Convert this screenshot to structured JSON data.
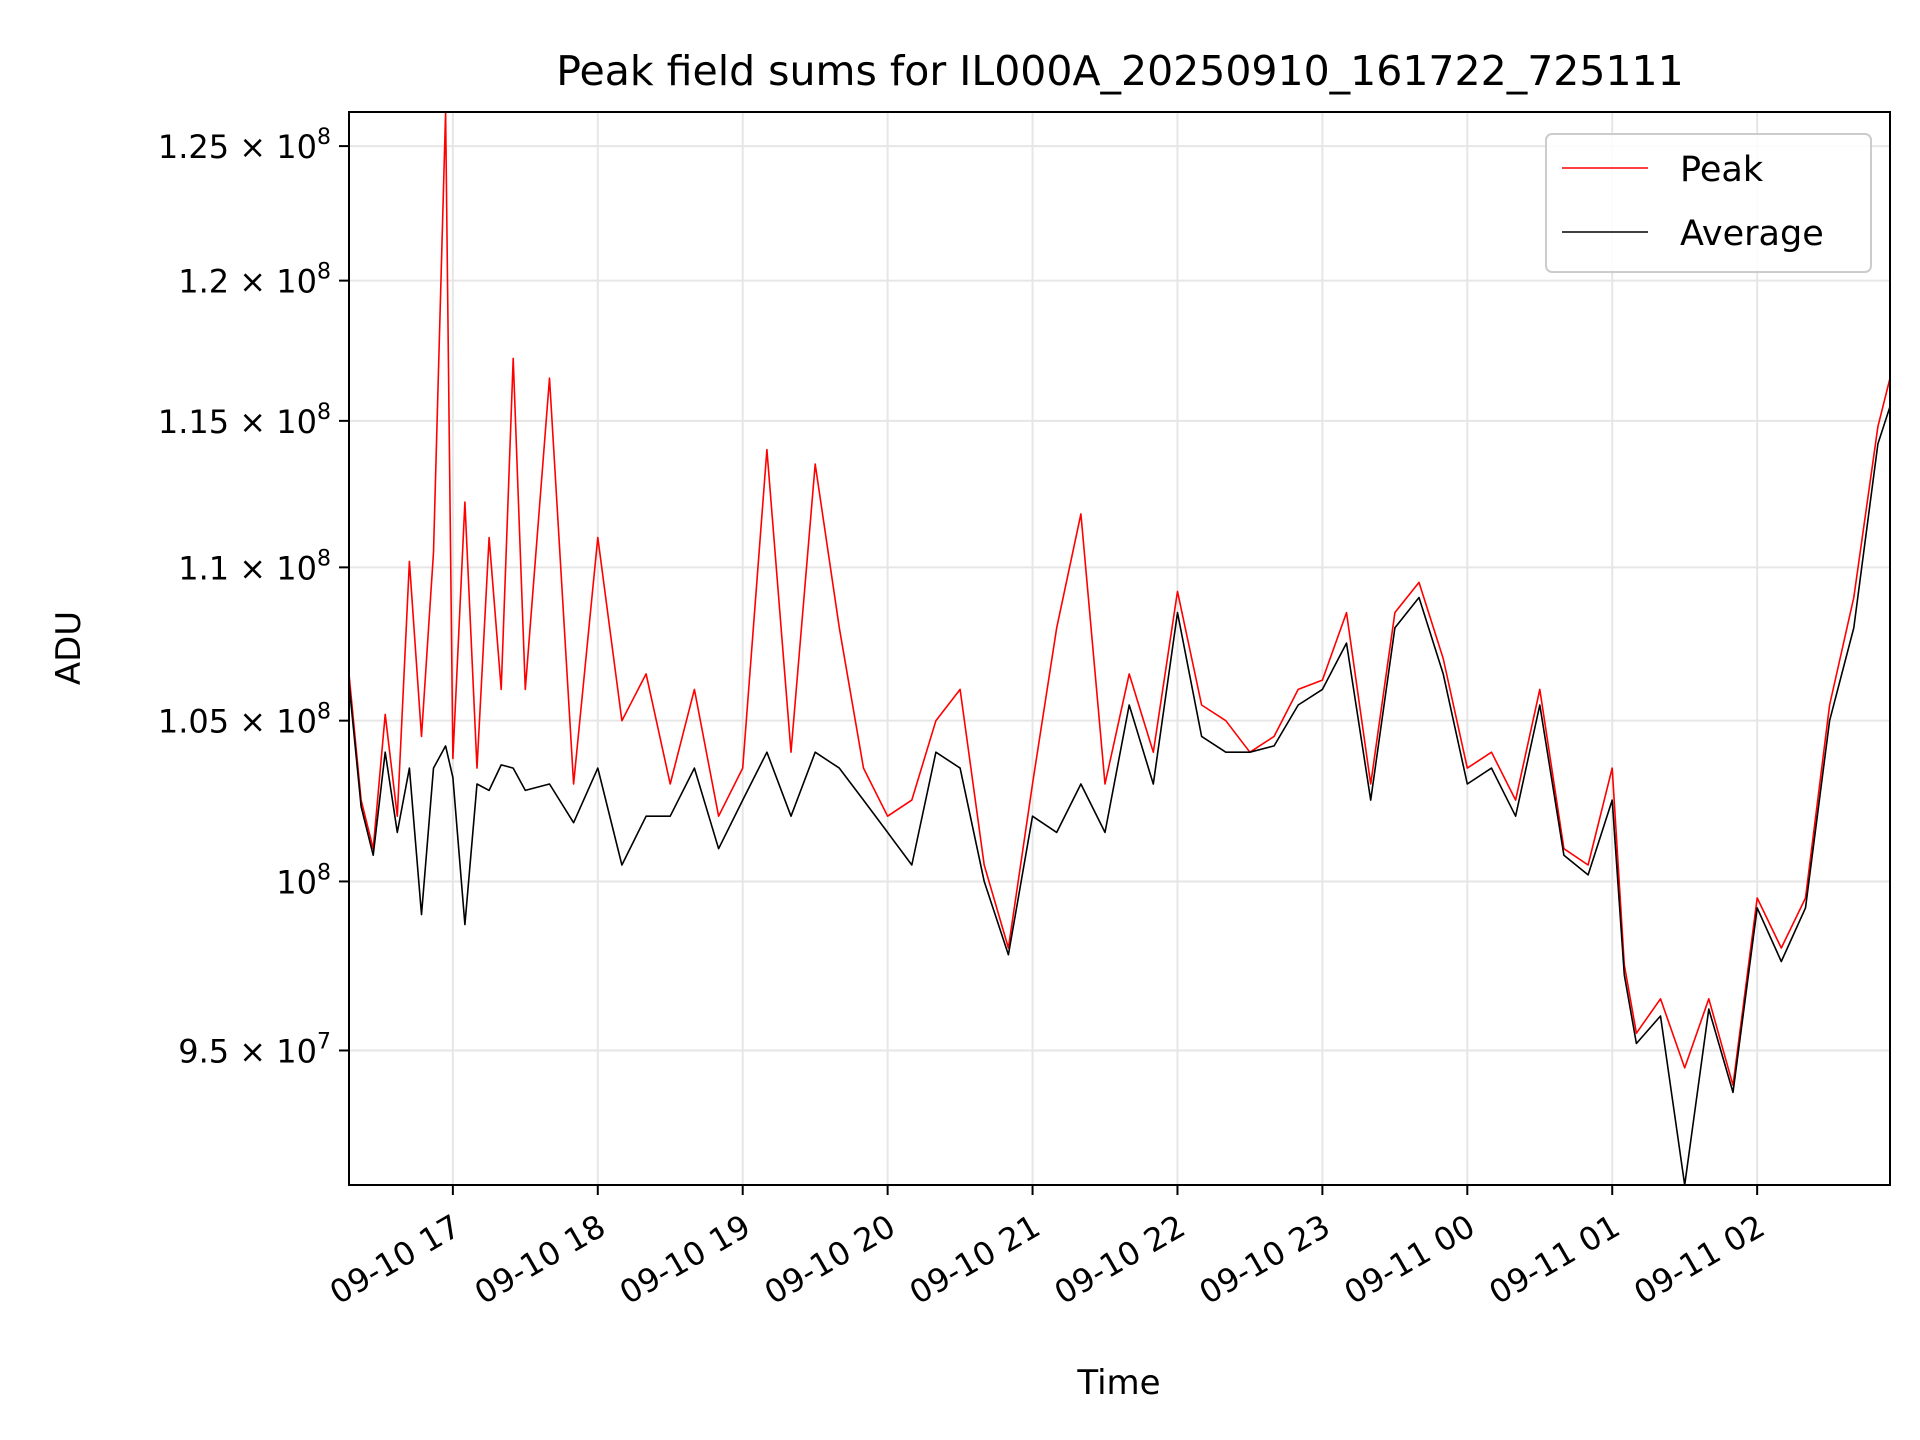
{
  "chart_data": {
    "type": "line",
    "title": "Peak field sums for IL000A_20250910_161722_725111",
    "xlabel": "Time",
    "ylabel": "ADU",
    "xlim": [
      "2025-09-10 16:17",
      "2025-09-11 02:55"
    ],
    "ylim": [
      91200000,
      126300000
    ],
    "yscale": "log",
    "grid": true,
    "legend_position": "top-right",
    "x_ticks": [
      {
        "t": "2025-09-10 17:00",
        "label": "09-10 17"
      },
      {
        "t": "2025-09-10 18:00",
        "label": "09-10 18"
      },
      {
        "t": "2025-09-10 19:00",
        "label": "09-10 19"
      },
      {
        "t": "2025-09-10 20:00",
        "label": "09-10 20"
      },
      {
        "t": "2025-09-10 21:00",
        "label": "09-10 21"
      },
      {
        "t": "2025-09-10 22:00",
        "label": "09-10 22"
      },
      {
        "t": "2025-09-10 23:00",
        "label": "09-10 23"
      },
      {
        "t": "2025-09-11 00:00",
        "label": "09-11 00"
      },
      {
        "t": "2025-09-11 01:00",
        "label": "09-11 01"
      },
      {
        "t": "2025-09-11 02:00",
        "label": "09-11 02"
      }
    ],
    "y_ticks": [
      {
        "value": 95000000,
        "mantissa": "9.5",
        "exp": "7"
      },
      {
        "value": 100000000,
        "mantissa": "",
        "exp": "8"
      },
      {
        "value": 105000000,
        "mantissa": "1.05",
        "exp": "8"
      },
      {
        "value": 110000000,
        "mantissa": "1.1",
        "exp": "8"
      },
      {
        "value": 115000000,
        "mantissa": "1.15",
        "exp": "8"
      },
      {
        "value": 120000000,
        "mantissa": "1.2",
        "exp": "8"
      },
      {
        "value": 125000000,
        "mantissa": "1.25",
        "exp": "8"
      }
    ],
    "series": [
      {
        "name": "Peak",
        "color": "#ff0000",
        "x": [
          "2025-09-10 16:17",
          "2025-09-10 16:22",
          "2025-09-10 16:27",
          "2025-09-10 16:32",
          "2025-09-10 16:37",
          "2025-09-10 16:42",
          "2025-09-10 16:47",
          "2025-09-10 16:52",
          "2025-09-10 16:57",
          "2025-09-10 17:00",
          "2025-09-10 17:05",
          "2025-09-10 17:10",
          "2025-09-10 17:15",
          "2025-09-10 17:20",
          "2025-09-10 17:25",
          "2025-09-10 17:30",
          "2025-09-10 17:40",
          "2025-09-10 17:50",
          "2025-09-10 18:00",
          "2025-09-10 18:10",
          "2025-09-10 18:20",
          "2025-09-10 18:30",
          "2025-09-10 18:40",
          "2025-09-10 18:50",
          "2025-09-10 19:00",
          "2025-09-10 19:10",
          "2025-09-10 19:20",
          "2025-09-10 19:30",
          "2025-09-10 19:40",
          "2025-09-10 19:50",
          "2025-09-10 20:00",
          "2025-09-10 20:10",
          "2025-09-10 20:20",
          "2025-09-10 20:30",
          "2025-09-10 20:40",
          "2025-09-10 20:50",
          "2025-09-10 21:00",
          "2025-09-10 21:10",
          "2025-09-10 21:20",
          "2025-09-10 21:30",
          "2025-09-10 21:40",
          "2025-09-10 21:50",
          "2025-09-10 22:00",
          "2025-09-10 22:10",
          "2025-09-10 22:20",
          "2025-09-10 22:30",
          "2025-09-10 22:40",
          "2025-09-10 22:50",
          "2025-09-10 23:00",
          "2025-09-10 23:10",
          "2025-09-10 23:20",
          "2025-09-10 23:30",
          "2025-09-10 23:40",
          "2025-09-10 23:50",
          "2025-09-11 00:00",
          "2025-09-11 00:10",
          "2025-09-11 00:20",
          "2025-09-11 00:30",
          "2025-09-11 00:40",
          "2025-09-11 00:50",
          "2025-09-11 01:00",
          "2025-09-11 01:05",
          "2025-09-11 01:10",
          "2025-09-11 01:20",
          "2025-09-11 01:30",
          "2025-09-11 01:40",
          "2025-09-11 01:50",
          "2025-09-11 02:00",
          "2025-09-11 02:10",
          "2025-09-11 02:20",
          "2025-09-11 02:30",
          "2025-09-11 02:40",
          "2025-09-11 02:50",
          "2025-09-11 02:55"
        ],
        "values": [
          106500000,
          102500000,
          101000000,
          105200000,
          102000000,
          110200000,
          104500000,
          110500000,
          126300000,
          103800000,
          112200000,
          103500000,
          111000000,
          106000000,
          117200000,
          106000000,
          116500000,
          103000000,
          111000000,
          105000000,
          106500000,
          103000000,
          106000000,
          102000000,
          103500000,
          114000000,
          104000000,
          113500000,
          108000000,
          103500000,
          102000000,
          102500000,
          105000000,
          106000000,
          100500000,
          98000000,
          103000000,
          108000000,
          111800000,
          103000000,
          106500000,
          104000000,
          109200000,
          105500000,
          105000000,
          104000000,
          104500000,
          106000000,
          106300000,
          108500000,
          103000000,
          108500000,
          109500000,
          107000000,
          103500000,
          104000000,
          102500000,
          106000000,
          101000000,
          100500000,
          103500000,
          97500000,
          95500000,
          96500000,
          94500000,
          96500000,
          94000000,
          99500000,
          98000000,
          99500000,
          105500000,
          109000000,
          114800000,
          116500000
        ]
      },
      {
        "name": "Average",
        "color": "#000000",
        "x": [
          "2025-09-10 16:17",
          "2025-09-10 16:22",
          "2025-09-10 16:27",
          "2025-09-10 16:32",
          "2025-09-10 16:37",
          "2025-09-10 16:42",
          "2025-09-10 16:47",
          "2025-09-10 16:52",
          "2025-09-10 16:57",
          "2025-09-10 17:00",
          "2025-09-10 17:05",
          "2025-09-10 17:10",
          "2025-09-10 17:15",
          "2025-09-10 17:20",
          "2025-09-10 17:25",
          "2025-09-10 17:30",
          "2025-09-10 17:40",
          "2025-09-10 17:50",
          "2025-09-10 18:00",
          "2025-09-10 18:10",
          "2025-09-10 18:20",
          "2025-09-10 18:30",
          "2025-09-10 18:40",
          "2025-09-10 18:50",
          "2025-09-10 19:00",
          "2025-09-10 19:10",
          "2025-09-10 19:20",
          "2025-09-10 19:30",
          "2025-09-10 19:40",
          "2025-09-10 19:50",
          "2025-09-10 20:00",
          "2025-09-10 20:10",
          "2025-09-10 20:20",
          "2025-09-10 20:30",
          "2025-09-10 20:40",
          "2025-09-10 20:50",
          "2025-09-10 21:00",
          "2025-09-10 21:10",
          "2025-09-10 21:20",
          "2025-09-10 21:30",
          "2025-09-10 21:40",
          "2025-09-10 21:50",
          "2025-09-10 22:00",
          "2025-09-10 22:10",
          "2025-09-10 22:20",
          "2025-09-10 22:30",
          "2025-09-10 22:40",
          "2025-09-10 22:50",
          "2025-09-10 23:00",
          "2025-09-10 23:10",
          "2025-09-10 23:20",
          "2025-09-10 23:30",
          "2025-09-10 23:40",
          "2025-09-10 23:50",
          "2025-09-11 00:00",
          "2025-09-11 00:10",
          "2025-09-11 00:20",
          "2025-09-11 00:30",
          "2025-09-11 00:40",
          "2025-09-11 00:50",
          "2025-09-11 01:00",
          "2025-09-11 01:05",
          "2025-09-11 01:10",
          "2025-09-11 01:20",
          "2025-09-11 01:30",
          "2025-09-11 01:40",
          "2025-09-11 01:50",
          "2025-09-11 02:00",
          "2025-09-11 02:10",
          "2025-09-11 02:20",
          "2025-09-11 02:30",
          "2025-09-11 02:40",
          "2025-09-11 02:50",
          "2025-09-11 02:55"
        ],
        "values": [
          106200000,
          102300000,
          100800000,
          104000000,
          101500000,
          103500000,
          99000000,
          103500000,
          104200000,
          103200000,
          98700000,
          103000000,
          102800000,
          103600000,
          103500000,
          102800000,
          103000000,
          101800000,
          103500000,
          100500000,
          102000000,
          102000000,
          103500000,
          101000000,
          102500000,
          104000000,
          102000000,
          104000000,
          103500000,
          102500000,
          101500000,
          100500000,
          104000000,
          103500000,
          100000000,
          97800000,
          102000000,
          101500000,
          103000000,
          101500000,
          105500000,
          103000000,
          108500000,
          104500000,
          104000000,
          104000000,
          104200000,
          105500000,
          106000000,
          107500000,
          102500000,
          108000000,
          109000000,
          106500000,
          103000000,
          103500000,
          102000000,
          105500000,
          100800000,
          100200000,
          102500000,
          97200000,
          95200000,
          96000000,
          91200000,
          96200000,
          93800000,
          99200000,
          97600000,
          99200000,
          105000000,
          108000000,
          114200000,
          115500000
        ]
      }
    ]
  }
}
